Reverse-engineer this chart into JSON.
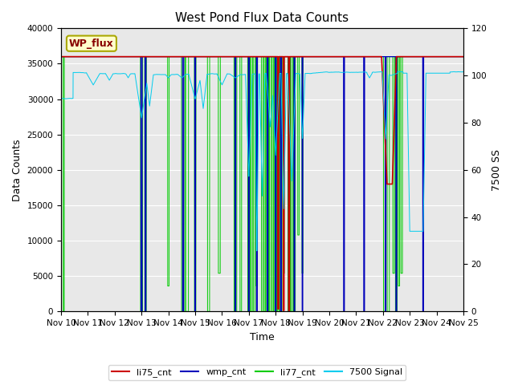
{
  "title": "West Pond Flux Data Counts",
  "xlabel": "Time",
  "ylabel_left": "Data Counts",
  "ylabel_right": "7500 SS",
  "ylim_left": [
    0,
    40000
  ],
  "ylim_right": [
    0,
    120
  ],
  "x_tick_labels": [
    "Nov 10",
    "Nov 11",
    "Nov 12",
    "Nov 13",
    "Nov 14",
    "Nov 15",
    "Nov 16",
    "Nov 17",
    "Nov 18",
    "Nov 19",
    "Nov 20",
    "Nov 21",
    "Nov 22",
    "Nov 23",
    "Nov 24",
    "Nov 25"
  ],
  "annotation_text": "WP_flux",
  "annotation_box_facecolor": "#ffffcc",
  "annotation_box_edgecolor": "#aaa800",
  "annotation_text_color": "#880000",
  "background_color": "#ffffff",
  "plot_bg_color": "#e8e8e8",
  "colors": {
    "li75_cnt": "#cc0000",
    "wmp_cnt": "#0000bb",
    "li77_cnt": "#00cc00",
    "signal7500": "#00ccee"
  },
  "legend_labels": [
    "li75_cnt",
    "wmp_cnt",
    "li77_cnt",
    "7500 Signal"
  ],
  "grid_color": "#ffffff",
  "title_fontsize": 11,
  "label_fontsize": 9,
  "tick_fontsize": 7.5
}
